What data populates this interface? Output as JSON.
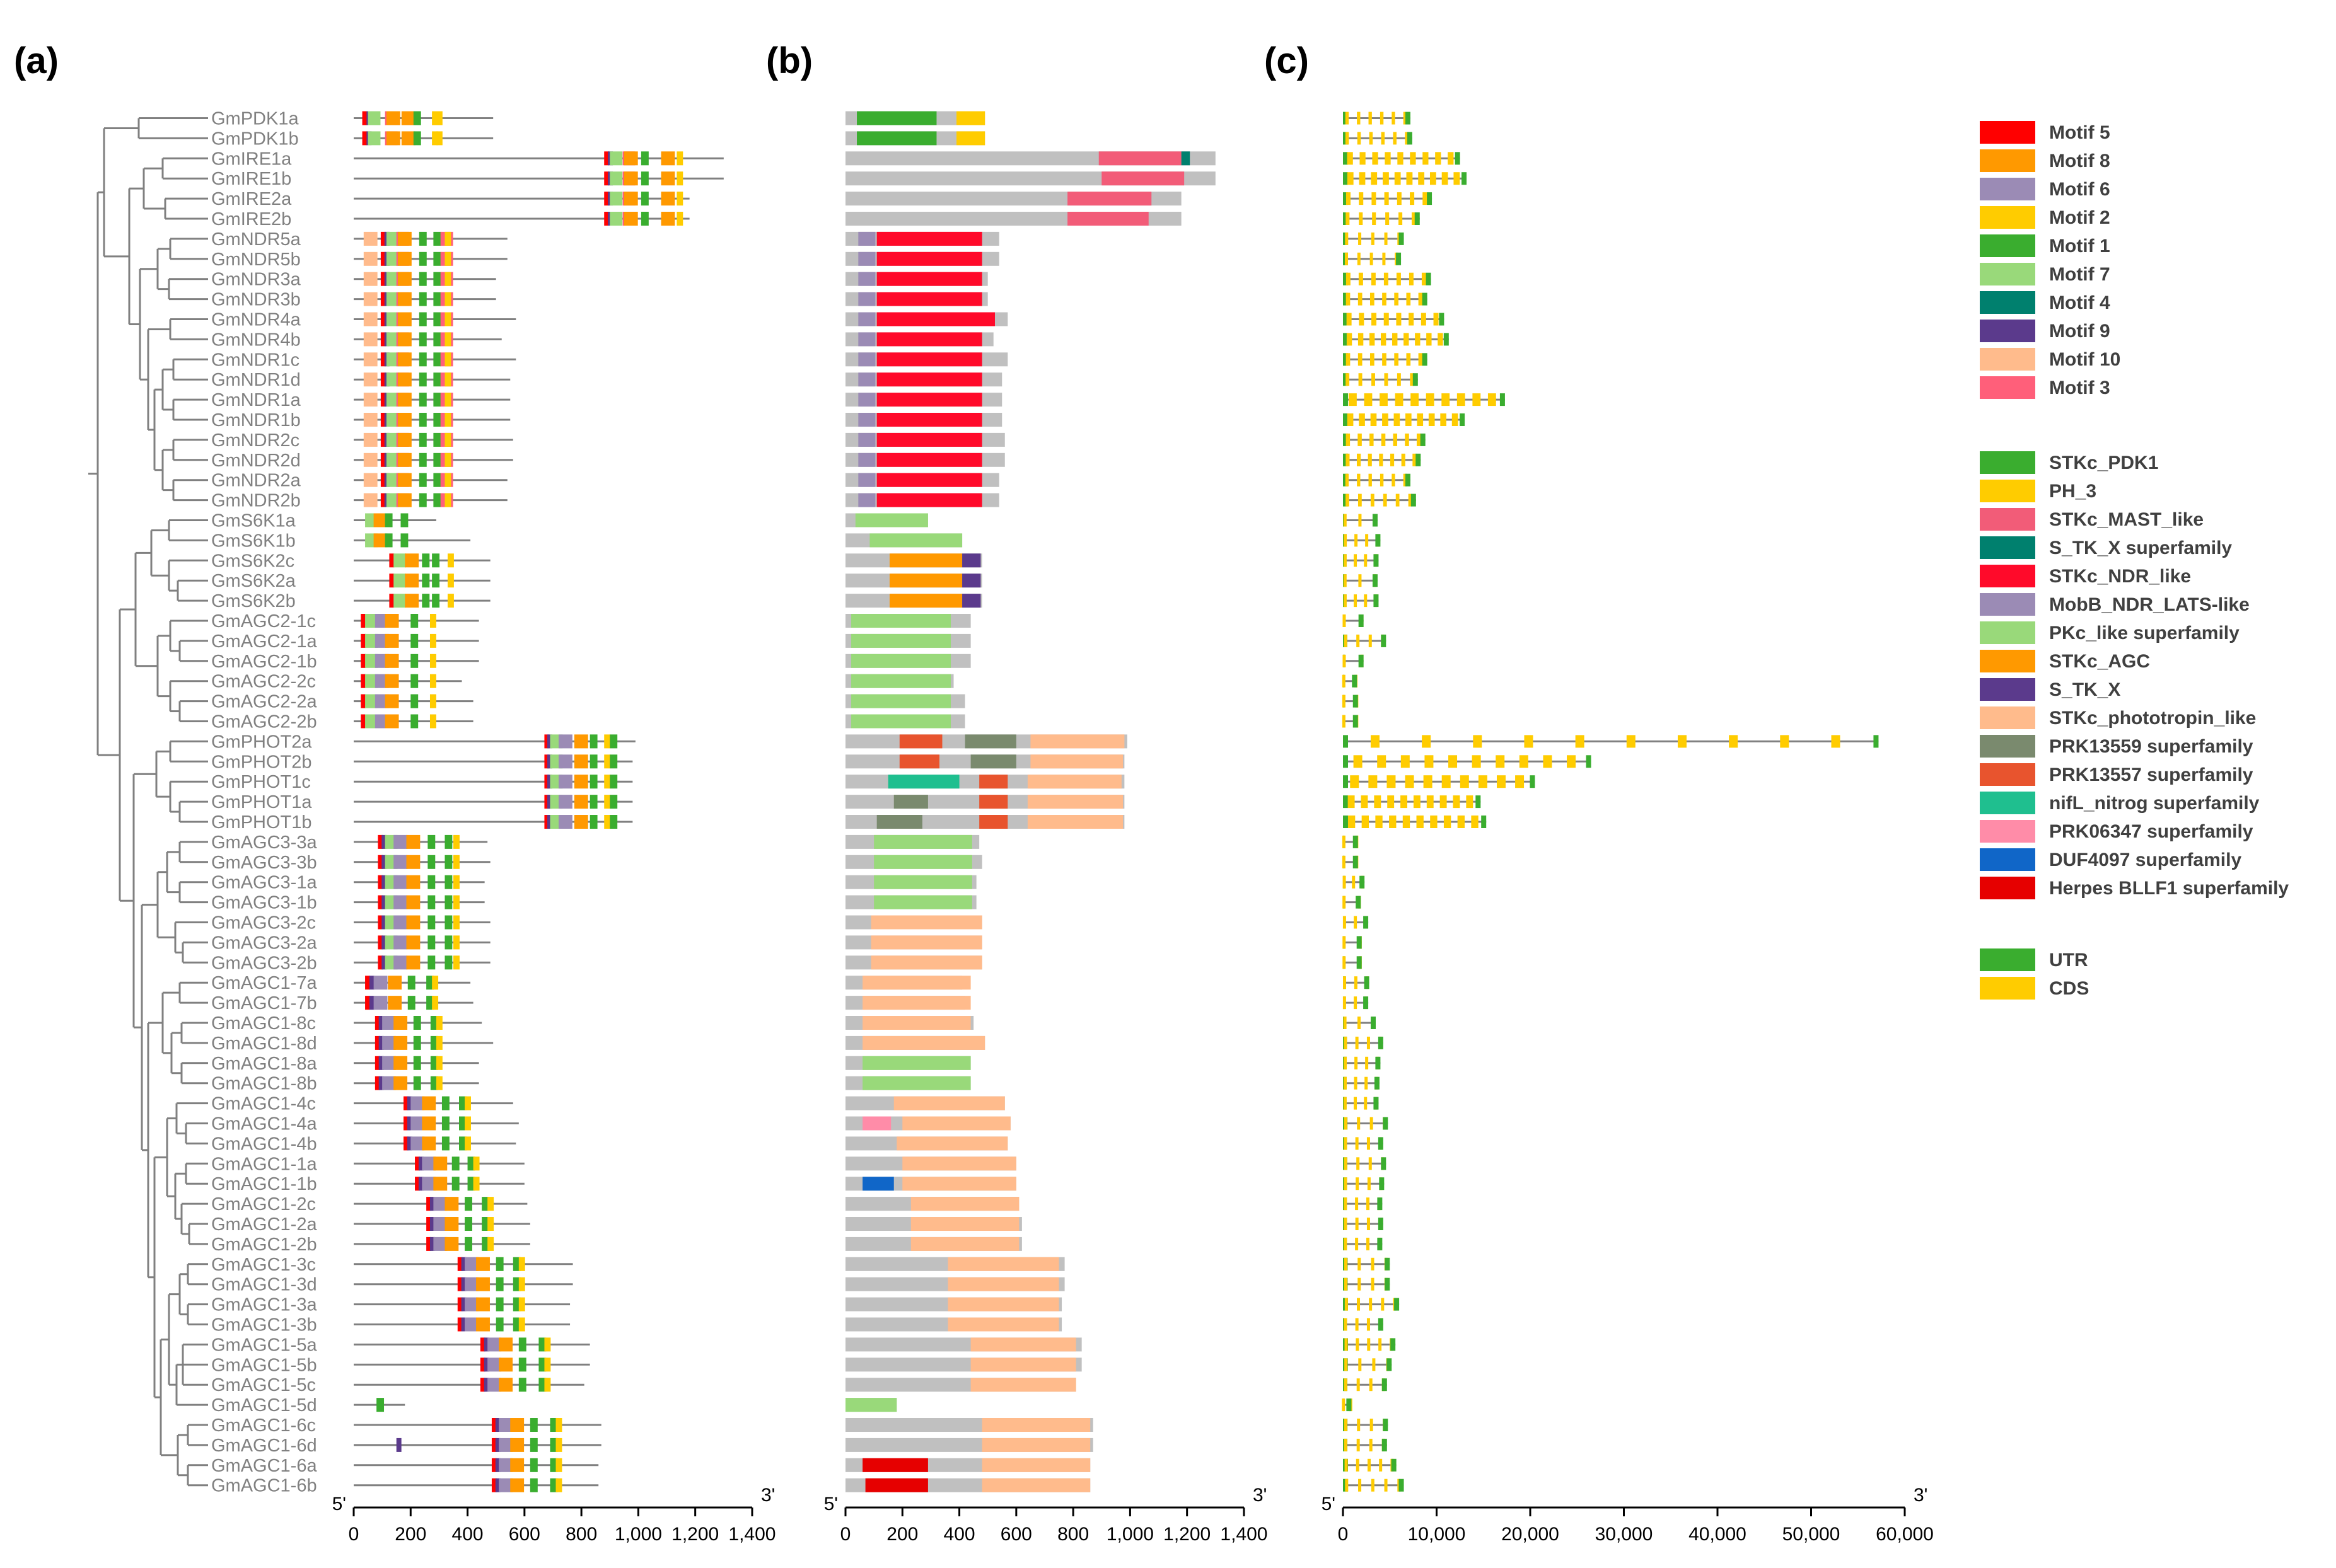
{
  "panels": [
    {
      "label": "(a)"
    },
    {
      "label": "(b)"
    },
    {
      "label": "(c)"
    }
  ],
  "genes": [
    "GmPDK1a",
    "GmPDK1b",
    "GmIRE1a",
    "GmIRE1b",
    "GmIRE2a",
    "GmIRE2b",
    "GmNDR5a",
    "GmNDR5b",
    "GmNDR3a",
    "GmNDR3b",
    "GmNDR4a",
    "GmNDR4b",
    "GmNDR1c",
    "GmNDR1d",
    "GmNDR1a",
    "GmNDR1b",
    "GmNDR2c",
    "GmNDR2d",
    "GmNDR2a",
    "GmNDR2b",
    "GmS6K1a",
    "GmS6K1b",
    "GmS6K2c",
    "GmS6K2a",
    "GmS6K2b",
    "GmAGC2-1c",
    "GmAGC2-1a",
    "GmAGC2-1b",
    "GmAGC2-2c",
    "GmAGC2-2a",
    "GmAGC2-2b",
    "GmPHOT2a",
    "GmPHOT2b",
    "GmPHOT1c",
    "GmPHOT1a",
    "GmPHOT1b",
    "GmAGC3-3a",
    "GmAGC3-3b",
    "GmAGC3-1a",
    "GmAGC3-1b",
    "GmAGC3-2c",
    "GmAGC3-2a",
    "GmAGC3-2b",
    "GmAGC1-7a",
    "GmAGC1-7b",
    "GmAGC1-8c",
    "GmAGC1-8d",
    "GmAGC1-8a",
    "GmAGC1-8b",
    "GmAGC1-4c",
    "GmAGC1-4a",
    "GmAGC1-4b",
    "GmAGC1-1a",
    "GmAGC1-1b",
    "GmAGC1-2c",
    "GmAGC1-2a",
    "GmAGC1-2b",
    "GmAGC1-3c",
    "GmAGC1-3d",
    "GmAGC1-3a",
    "GmAGC1-3b",
    "GmAGC1-5a",
    "GmAGC1-5b",
    "GmAGC1-5c",
    "GmAGC1-5d",
    "GmAGC1-6c",
    "GmAGC1-6d",
    "GmAGC1-6a",
    "GmAGC1-6b"
  ],
  "protein_lengths_aa": [
    490,
    490,
    1300,
    1300,
    1180,
    1180,
    540,
    540,
    500,
    500,
    570,
    520,
    570,
    550,
    550,
    550,
    560,
    560,
    540,
    540,
    290,
    410,
    480,
    480,
    480,
    440,
    440,
    440,
    380,
    420,
    420,
    990,
    980,
    980,
    980,
    980,
    470,
    480,
    460,
    460,
    480,
    480,
    480,
    410,
    420,
    450,
    490,
    440,
    440,
    560,
    580,
    570,
    600,
    600,
    610,
    620,
    620,
    770,
    770,
    760,
    760,
    830,
    830,
    810,
    180,
    870,
    870,
    860,
    860
  ],
  "gene_lengths_bp": [
    7200,
    7400,
    12500,
    13200,
    9500,
    8200,
    6500,
    6200,
    9400,
    9000,
    10800,
    11300,
    9000,
    8000,
    17300,
    13000,
    8800,
    8300,
    7200,
    7800,
    3700,
    4000,
    3800,
    3700,
    3800,
    2200,
    4600,
    2200,
    1500,
    1600,
    1600,
    57200,
    26500,
    20500,
    14700,
    15300,
    1600,
    1600,
    2300,
    1900,
    2700,
    2000,
    2000,
    2800,
    2700,
    3500,
    4300,
    4000,
    3900,
    3800,
    4800,
    4300,
    4600,
    4400,
    4200,
    4300,
    4200,
    5000,
    5000,
    6000,
    4300,
    5600,
    5200,
    4700,
    900,
    4800,
    4700,
    5700,
    6500
  ],
  "motif_axis": {
    "ticks": [
      "0",
      "200",
      "400",
      "600",
      "800",
      "1,000",
      "1,200",
      "1,400"
    ],
    "end5": "5'",
    "end3": "3'",
    "max": 1400
  },
  "domain_axis": {
    "ticks": [
      "0",
      "200",
      "400",
      "600",
      "800",
      "1,000",
      "1,200",
      "1,400"
    ],
    "end5": "5'",
    "end3": "3'",
    "max": 1400
  },
  "gene_axis": {
    "ticks": [
      "0",
      "10,000",
      "20,000",
      "30,000",
      "40,000",
      "50,000",
      "60,000"
    ],
    "end5": "5'",
    "end3": "3'",
    "max": 60000
  },
  "legend_motifs": [
    {
      "label": "Motif 5",
      "color": "#ff0000"
    },
    {
      "label": "Motif 8",
      "color": "#ff9900"
    },
    {
      "label": "Motif 6",
      "color": "#9b8bb5"
    },
    {
      "label": "Motif 2",
      "color": "#ffcc00"
    },
    {
      "label": "Motif 1",
      "color": "#3aad2f"
    },
    {
      "label": "Motif 7",
      "color": "#99d97a"
    },
    {
      "label": "Motif 4",
      "color": "#00806e"
    },
    {
      "label": "Motif 9",
      "color": "#5b3a8c"
    },
    {
      "label": "Motif 10",
      "color": "#ffbb8c"
    },
    {
      "label": "Motif 3",
      "color": "#ff5f7a"
    }
  ],
  "legend_domains": [
    {
      "label": "STKc_PDK1",
      "color": "#3aad2f"
    },
    {
      "label": "PH_3",
      "color": "#ffcc00"
    },
    {
      "label": "STKc_MAST_like",
      "color": "#f25c78"
    },
    {
      "label": "S_TK_X superfamily",
      "color": "#00806e"
    },
    {
      "label": "STKc_NDR_like",
      "color": "#ff0a2a"
    },
    {
      "label": "MobB_NDR_LATS-like",
      "color": "#9b8bb5"
    },
    {
      "label": "PKc_like superfamily",
      "color": "#99d97a"
    },
    {
      "label": "STKc_AGC",
      "color": "#ff9900"
    },
    {
      "label": "S_TK_X",
      "color": "#5b3a8c"
    },
    {
      "label": "STKc_phototropin_like",
      "color": "#ffbb8c"
    },
    {
      "label": "PRK13559 superfamily",
      "color": "#7a8a6e"
    },
    {
      "label": "PRK13557 superfamily",
      "color": "#e8542e"
    },
    {
      "label": "nifL_nitrog superfamily",
      "color": "#1fbf8f"
    },
    {
      "label": "PRK06347 superfamily",
      "color": "#ff8ca8"
    },
    {
      "label": "DUF4097 superfamily",
      "color": "#1066c8"
    },
    {
      "label": "Herpes BLLF1 superfamily",
      "color": "#e60000"
    }
  ],
  "legend_structure": [
    {
      "label": "UTR",
      "color": "#3aad2f"
    },
    {
      "label": "CDS",
      "color": "#ffcc00"
    }
  ],
  "colors": {
    "motif_line": "#808080",
    "domain_bar": "#c0c0c0",
    "tree": "#808080",
    "label": "#808080",
    "axis": "#000000"
  }
}
